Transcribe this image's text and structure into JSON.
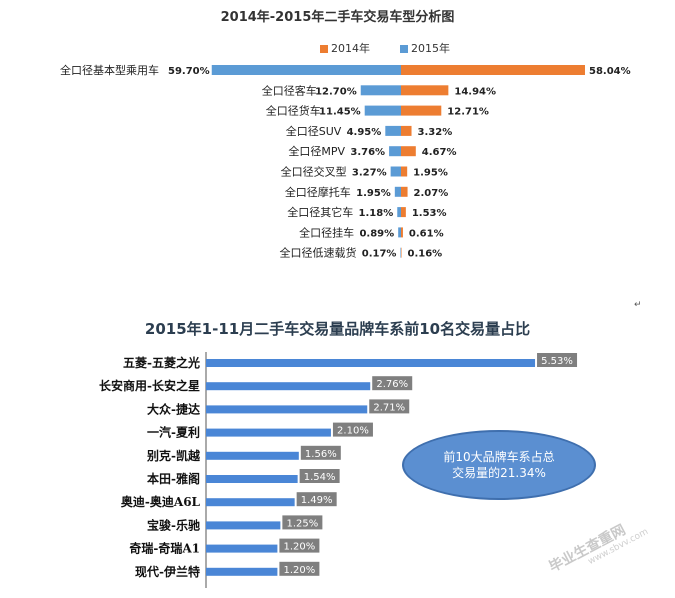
{
  "chart_data": [
    {
      "type": "bar",
      "orientation": "horizontal-diverging",
      "title": "2014年-2015年二手车交易车型分析图",
      "categories": [
        "全口径基本型乘用车",
        "全口径客车",
        "全口径货车",
        "全口径SUV",
        "全口径MPV",
        "全口径交叉型",
        "全口径摩托车",
        "全口径其它车",
        "全口径挂车",
        "全口径低速载货"
      ],
      "series": [
        {
          "name": "2014年",
          "color": "#ed7d31",
          "values": [
            58.04,
            14.94,
            12.71,
            3.32,
            4.67,
            1.95,
            2.07,
            1.53,
            0.61,
            0.16
          ],
          "labels": [
            "58.04%",
            "14.94%",
            "12.71%",
            "3.32%",
            "4.67%",
            "1.95%",
            "2.07%",
            "1.53%",
            "0.61%",
            "0.16%"
          ]
        },
        {
          "name": "2015年",
          "color": "#5b9bd5",
          "values": [
            59.7,
            12.7,
            11.45,
            4.95,
            3.76,
            3.27,
            1.95,
            1.18,
            0.89,
            0.17
          ],
          "labels": [
            "59.70%",
            "12.70%",
            "11.45%",
            "4.95%",
            "3.76%",
            "3.27%",
            "1.95%",
            "1.18%",
            "0.89%",
            "0.17%"
          ]
        }
      ],
      "legend": "top-center"
    },
    {
      "type": "bar",
      "orientation": "horizontal",
      "title": "2015年1-11月二手车交易量品牌车系前10名交易量占比",
      "categories": [
        "五菱-五菱之光",
        "长安商用-长安之星",
        "大众-捷达",
        "一汽-夏利",
        "别克-凯越",
        "本田-雅阁",
        "奥迪-奥迪A6L",
        "宝骏-乐驰",
        "奇瑞-奇瑞A1",
        "现代-伊兰特"
      ],
      "values": [
        5.53,
        2.76,
        2.71,
        2.1,
        1.56,
        1.54,
        1.49,
        1.25,
        1.2,
        1.2
      ],
      "labels": [
        "5.53%",
        "2.76%",
        "2.71%",
        "2.10%",
        "1.56%",
        "1.54%",
        "1.49%",
        "1.25%",
        "1.20%",
        "1.20%"
      ],
      "color": "#4a86d6",
      "annotation": "前10大品牌车系占总交易量的21.34%"
    }
  ],
  "watermark": "毕业生查重网",
  "watermark_url": "www.sbvv.com",
  "mark": "↵"
}
